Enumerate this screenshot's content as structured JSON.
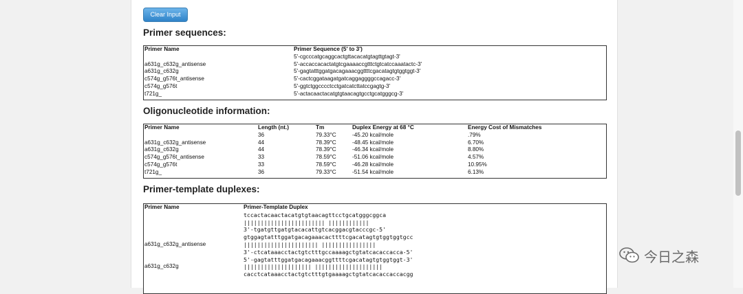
{
  "buttons": {
    "clear_input": "Clear Input"
  },
  "sections": {
    "primer_sequences": "Primer sequences:",
    "oligo_info": "Oligonucleotide information:",
    "duplexes": "Primer-template duplexes:"
  },
  "primer_table": {
    "headers": [
      "Primer Name",
      "Primer Sequence (5' to 3')"
    ],
    "rows": [
      [
        "",
        "5'-cgcccatgcaggcactgttacacatgtagttgtagt-3'"
      ],
      [
        "a631g_c632g_antisense",
        "5'-accaccacactatgtcgaaaaccgtttctgtcatccaaatactc-3'"
      ],
      [
        "a631g_c632g",
        "5'-gagtatttggatgacagaaacggttttcgacatagtgtggtggt-3'"
      ],
      [
        "c574g_g576t_antisense",
        "5'-cactcggataagatgatcaggaggggccagacc-3'"
      ],
      [
        "c574g_g576t",
        "5'-ggtctggcccctcctgatcatcttatccgagtg-3'"
      ],
      [
        "t721g_",
        "5'-actacaactacatgtgtaacagtgcctgcatgggcg-3'"
      ]
    ]
  },
  "oligo_table": {
    "headers": [
      "Primer Name",
      "Length (nt.)",
      "Tm",
      "Duplex Energy at 68 °C",
      "Energy Cost of Mismatches"
    ],
    "rows": [
      [
        "",
        "36",
        "79.33°C",
        "-45.20 kcal/mole",
        ".79%"
      ],
      [
        "a631g_c632g_antisense",
        "44",
        "78.39°C",
        "-48.45 kcal/mole",
        "6.70%"
      ],
      [
        "a631g_c632g",
        "44",
        "78.39°C",
        "-46.34 kcal/mole",
        "8.80%"
      ],
      [
        "c574g_g576t_antisense",
        "33",
        "78.59°C",
        "-51.06 kcal/mole",
        "4.57%"
      ],
      [
        "c574g_g576t",
        "33",
        "78.59°C",
        "-46.28 kcal/mole",
        "10.95%"
      ],
      [
        "t721g_",
        "36",
        "79.33°C",
        "-51.54 kcal/mole",
        "6.13%"
      ]
    ]
  },
  "duplex_table": {
    "headers": [
      "Primer Name",
      "Primer-Template Duplex"
    ],
    "rows": [
      [
        "",
        "tccactacaactacatgtgtaacagttcctgcatgggcggca"
      ],
      [
        "",
        "   |||||||||||||||||||||||| ||||||||||||"
      ],
      [
        "",
        "3'-tgatgttgatgtacacattgtcacggacgtacccgc-5'"
      ],
      [
        "",
        "gtggagtatttggatgacagaaacacttttcgacatagtgtggtggtgcc"
      ],
      [
        "a631g_c632g_antisense",
        "   ||||||||||||||||||||||  ||||||||||||||||"
      ],
      [
        "",
        "3'-ctcataaacctactgtctttgccaaaagctgtatcacaccacca-5'"
      ],
      [
        "",
        "5'-gagtatttggatgacagaaacggttttcgacatagtgtggtggt-3'"
      ],
      [
        "a631g_c632g",
        "   ||||||||||||||||||||  ||||||||||||||||||||"
      ],
      [
        "",
        "cacctcataaacctactgtctttgtgaaaagctgtatcacaccaccacgg"
      ]
    ]
  },
  "watermark": {
    "text": "今日之森",
    "icon": "wechat-icon"
  }
}
